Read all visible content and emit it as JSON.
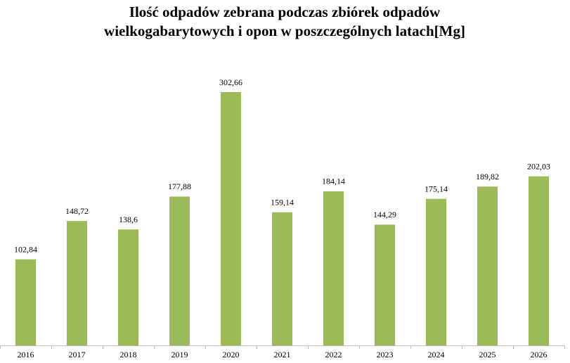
{
  "chart_data": {
    "type": "bar",
    "title": [
      "Ilość odpadów zebrana podczas zbiórek odpadów",
      "wielkogabarytowych i opon w poszczególnych latach[Mg]"
    ],
    "categories": [
      "2016",
      "2017",
      "2018",
      "2019",
      "2020",
      "2021",
      "2022",
      "2023",
      "2024",
      "2025",
      "2026"
    ],
    "values": [
      102.84,
      148.72,
      138.6,
      177.88,
      302.66,
      159.14,
      184.14,
      144.29,
      175.14,
      189.82,
      202.03
    ],
    "value_labels": [
      "102,84",
      "148,72",
      "138,6",
      "177,88",
      "302,66",
      "159,14",
      "184,14",
      "144,29",
      "175,14",
      "189,82",
      "202,03"
    ],
    "color": "#9bbb59"
  }
}
